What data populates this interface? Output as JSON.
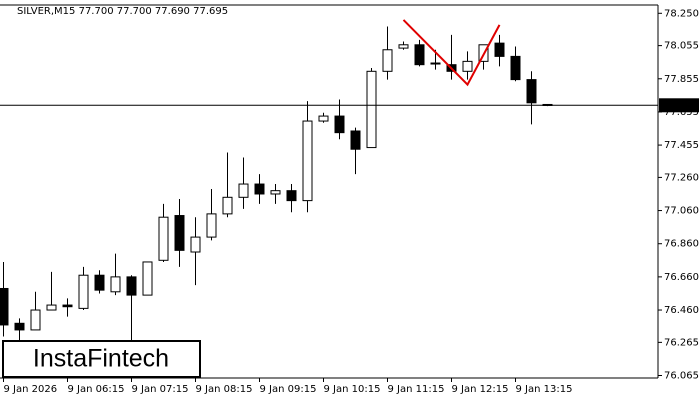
{
  "chart_data": {
    "type": "candlestick",
    "title": "SILVER,M15  77.700 77.700 77.690 77.695",
    "categories": [
      "9 Jan 2026",
      null,
      null,
      null,
      "9 Jan 06:15",
      null,
      null,
      null,
      "9 Jan 07:15",
      null,
      null,
      null,
      "9 Jan 08:15",
      null,
      null,
      null,
      "9 Jan 09:15",
      null,
      null,
      null,
      "9 Jan 10:15",
      null,
      null,
      null,
      "9 Jan 11:15",
      null,
      null,
      null,
      "9 Jan 12:15",
      null,
      null,
      null,
      "9 Jan 13:15",
      null,
      null
    ],
    "open": [
      76.59,
      76.38,
      76.34,
      76.46,
      76.49,
      76.47,
      76.67,
      76.57,
      76.66,
      76.55,
      76.76,
      77.03,
      76.81,
      76.9,
      77.04,
      77.14,
      77.22,
      77.16,
      77.18,
      77.12,
      77.6,
      77.63,
      77.54,
      77.44,
      77.9,
      78.04,
      78.06,
      77.95,
      77.94,
      77.9,
      77.96,
      78.07,
      77.99,
      77.85,
      77.7
    ],
    "high": [
      76.75,
      76.41,
      76.57,
      76.69,
      76.53,
      76.72,
      76.7,
      76.8,
      76.67,
      76.75,
      77.1,
      77.13,
      77.02,
      77.19,
      77.41,
      77.38,
      77.28,
      77.22,
      77.22,
      77.72,
      77.65,
      77.73,
      77.56,
      77.92,
      78.17,
      78.08,
      78.09,
      78.03,
      78.12,
      78.02,
      78.06,
      78.12,
      78.05,
      77.9,
      77.7
    ],
    "low": [
      76.3,
      76.25,
      76.34,
      76.46,
      76.42,
      76.46,
      76.56,
      76.55,
      76.25,
      76.55,
      76.75,
      76.72,
      76.61,
      76.88,
      77.02,
      77.07,
      77.1,
      77.1,
      77.05,
      77.05,
      77.59,
      77.49,
      77.28,
      77.44,
      77.85,
      78.03,
      77.93,
      77.91,
      77.85,
      77.85,
      77.91,
      77.93,
      77.84,
      77.58,
      77.69
    ],
    "close": [
      76.37,
      76.34,
      76.46,
      76.49,
      76.48,
      76.67,
      76.58,
      76.66,
      76.55,
      76.75,
      77.02,
      76.82,
      76.9,
      77.04,
      77.14,
      77.22,
      77.16,
      77.18,
      77.12,
      77.6,
      77.63,
      77.53,
      77.43,
      77.9,
      78.03,
      78.06,
      77.94,
      77.95,
      77.9,
      77.96,
      78.06,
      77.99,
      77.85,
      77.71,
      77.695
    ],
    "up_color": "#ffffff",
    "down_color": "#000000",
    "ylim": [
      76.05,
      78.3
    ],
    "yticks": [
      {
        "value": 78.25,
        "label": "78.250"
      },
      78.055,
      77.855,
      77.655,
      77.455,
      {
        "value": 77.26,
        "label": "77.260"
      },
      {
        "value": 77.06,
        "label": "77.060"
      },
      {
        "value": 76.86,
        "label": "76.860"
      },
      {
        "value": 76.66,
        "label": "76.660"
      },
      {
        "value": 76.46,
        "label": "76.460"
      },
      76.265,
      76.065
    ],
    "current_price": 77.695,
    "pattern_line": {
      "color": "#e00000",
      "points": [
        [
          25,
          78.21
        ],
        [
          29,
          77.82
        ],
        [
          31,
          78.18
        ]
      ]
    },
    "logo": "InstaFintech"
  }
}
